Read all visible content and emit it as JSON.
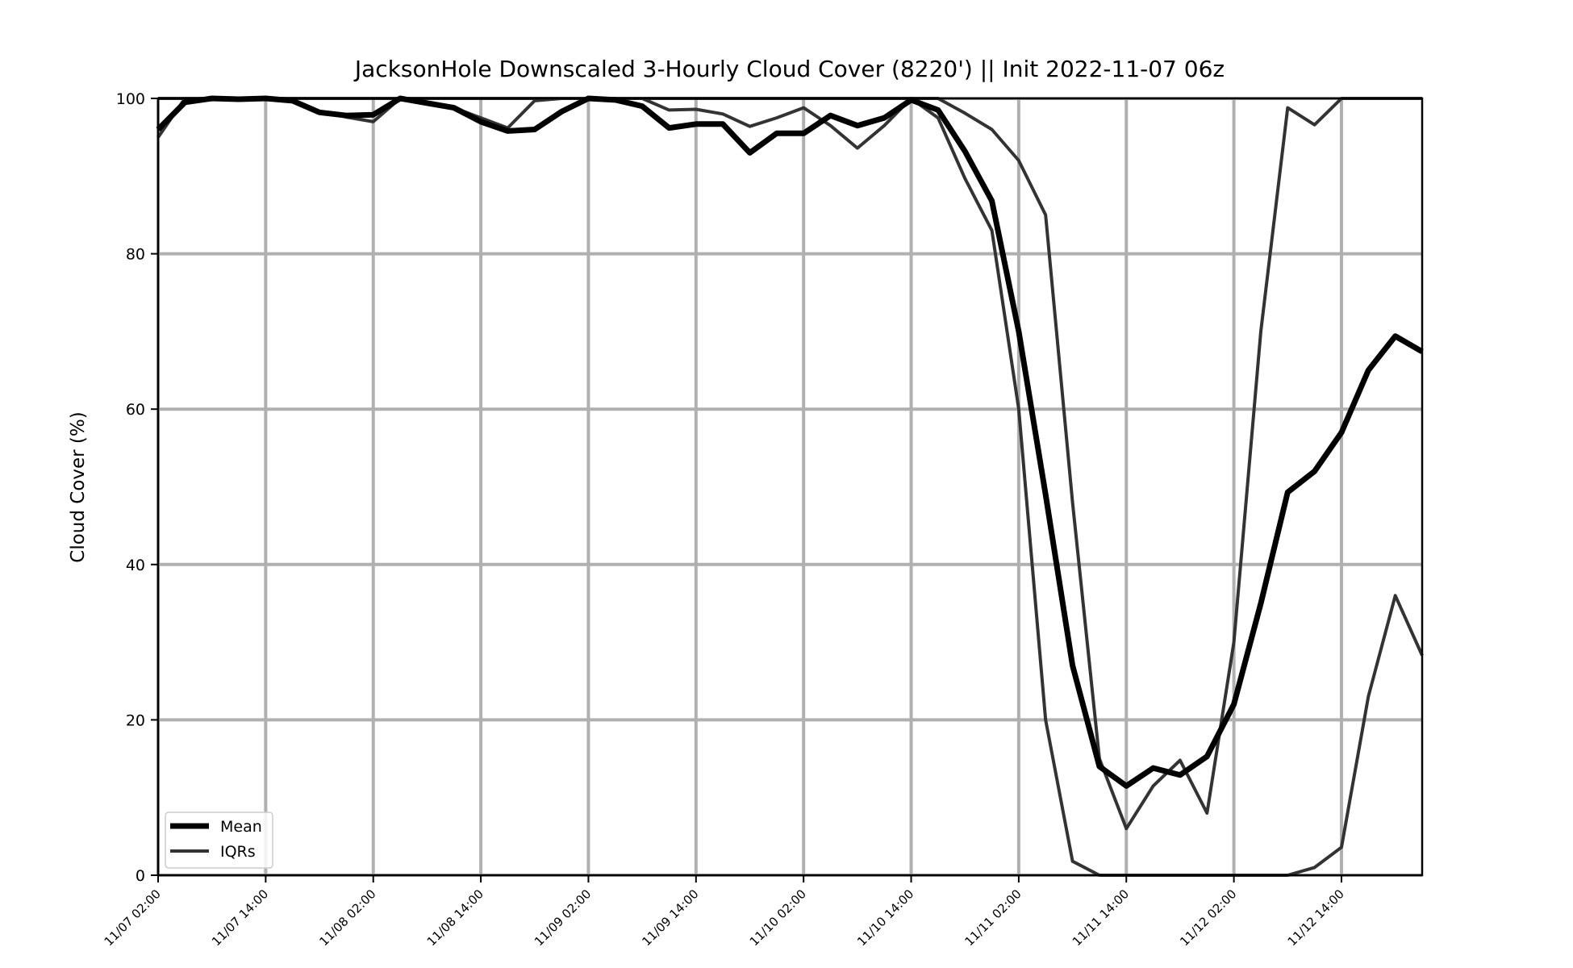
{
  "chart_data": {
    "type": "line",
    "title": "JacksonHole Downscaled 3-Hourly Cloud Cover (8220') || Init 2022-11-07 06z",
    "ylabel": "Cloud Cover (%)",
    "xlabel": "",
    "ylim": [
      0,
      100
    ],
    "grid": true,
    "legend_position": "bottom-left",
    "colors": {
      "mean": "#000000",
      "iqr": "#333333",
      "grid": "#b0b0b0"
    },
    "y_ticks": [
      "0",
      "20",
      "40",
      "60",
      "80",
      "100"
    ],
    "x_ticks": [
      "11/07 02:00",
      "11/07 14:00",
      "11/08 02:00",
      "11/08 14:00",
      "11/09 02:00",
      "11/09 14:00",
      "11/10 02:00",
      "11/10 14:00",
      "11/11 02:00",
      "11/11 14:00",
      "11/12 02:00",
      "11/12 14:00"
    ],
    "x_start": "11/07 02:00",
    "x_end": "11/12 23:00",
    "x_step_hours": 3,
    "series": [
      {
        "name": "Mean",
        "role": "mean",
        "values": [
          96,
          99.5,
          100,
          99.9,
          100,
          99.7,
          98.2,
          97.8,
          97.9,
          100,
          99.4,
          98.8,
          97,
          95.8,
          96,
          98.3,
          100,
          99.8,
          99,
          96.2,
          96.7,
          96.7,
          93,
          95.5,
          95.5,
          97.8,
          96.5,
          97.5,
          99.8,
          98.5,
          93.2,
          86.8,
          70,
          49,
          27,
          14,
          11.5,
          13.8,
          12.9,
          15.3,
          22,
          35,
          49.3,
          52,
          57,
          65,
          69.4,
          67.4
        ]
      },
      {
        "name": "IQRs",
        "role": "iqr_low",
        "values": [
          95,
          100,
          100,
          100,
          100,
          99.8,
          98.3,
          97.6,
          97,
          100,
          99.5,
          98.8,
          97.5,
          96.2,
          99.7,
          100,
          100,
          100,
          100,
          98.5,
          98.6,
          98,
          96.4,
          97.5,
          98.8,
          96.5,
          93.6,
          96.5,
          100,
          97.5,
          89.7,
          83,
          60,
          20,
          1.8,
          0,
          0,
          0,
          0,
          0,
          0,
          0,
          0,
          1,
          3.6,
          23,
          36,
          28.3
        ]
      },
      {
        "name": "",
        "role": "iqr_high",
        "values": [
          100,
          100,
          100,
          100,
          100,
          100,
          100,
          100,
          100,
          100,
          100,
          100,
          100,
          100,
          100,
          100,
          100,
          100,
          100,
          100,
          100,
          100,
          100,
          100,
          100,
          100,
          100,
          100,
          100,
          100,
          98.1,
          96,
          92,
          85,
          48,
          15,
          6,
          11.5,
          14.8,
          8,
          30,
          70,
          98.8,
          96.6,
          100,
          100,
          100,
          100
        ]
      }
    ],
    "legend": [
      {
        "label": "Mean",
        "role": "mean"
      },
      {
        "label": "IQRs",
        "role": "iqr"
      }
    ]
  }
}
